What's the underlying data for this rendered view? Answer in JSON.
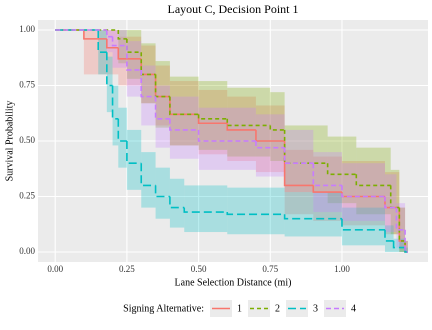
{
  "chart_data": {
    "type": "step",
    "title": "Layout C, Decision Point 1",
    "x_label": "Lane Selection Distance (mi)",
    "y_label": "Survival Probability",
    "legend_title": "Signing Alternative:",
    "legend_position": "bottom",
    "grid": true,
    "xlim": [
      -0.06,
      1.3
    ],
    "ylim": [
      -0.045,
      1.045
    ],
    "xticks": [
      {
        "value": 0,
        "label": "0.00"
      },
      0.25,
      {
        "value": 0.5,
        "label": "0.50"
      },
      0.75,
      {
        "value": 1,
        "label": "1.00"
      }
    ],
    "yticks": [
      {
        "value": 0,
        "label": "0.00"
      },
      0.25,
      {
        "value": 0.5,
        "label": "0.50"
      },
      0.75,
      {
        "value": 1,
        "label": "1.00"
      }
    ],
    "series": [
      {
        "name": "1",
        "color": "#F8766D",
        "dash": "none",
        "x": [
          0,
          0.1,
          0.18,
          0.22,
          0.3,
          0.35,
          0.4,
          0.5,
          0.6,
          0.7,
          0.8,
          0.9,
          1.0,
          1.15,
          1.2,
          1.22
        ],
        "values": [
          1,
          0.96,
          0.92,
          0.87,
          0.8,
          0.7,
          0.62,
          0.58,
          0.55,
          0.5,
          0.3,
          0.27,
          0.25,
          0.2,
          0.05,
          0
        ],
        "lower": [
          1,
          0.8,
          0.8,
          0.75,
          0.67,
          0.57,
          0.48,
          0.44,
          0.41,
          0.36,
          0.17,
          0.14,
          0.12,
          0.08,
          0,
          0
        ],
        "upper": [
          1,
          1,
          1,
          0.97,
          0.93,
          0.84,
          0.77,
          0.73,
          0.7,
          0.66,
          0.46,
          0.43,
          0.41,
          0.36,
          0.2,
          0.05
        ]
      },
      {
        "name": "2",
        "color": "#7CAE00",
        "dash": "4 3",
        "x": [
          0,
          0.22,
          0.25,
          0.3,
          0.35,
          0.4,
          0.5,
          0.6,
          0.75,
          0.8,
          0.95,
          1.05,
          1.17,
          1.2,
          1.22
        ],
        "values": [
          1,
          0.96,
          0.9,
          0.8,
          0.7,
          0.62,
          0.6,
          0.57,
          0.55,
          0.4,
          0.35,
          0.3,
          0.2,
          0.05,
          0
        ],
        "lower": [
          1,
          0.85,
          0.78,
          0.67,
          0.56,
          0.48,
          0.46,
          0.43,
          0.41,
          0.27,
          0.22,
          0.17,
          0.08,
          0,
          0
        ],
        "upper": [
          1,
          1,
          1,
          0.94,
          0.86,
          0.79,
          0.77,
          0.74,
          0.72,
          0.57,
          0.52,
          0.47,
          0.37,
          0.2,
          0.05
        ]
      },
      {
        "name": "3",
        "color": "#00BFC4",
        "dash": "8 4",
        "x": [
          0,
          0.15,
          0.18,
          0.2,
          0.22,
          0.25,
          0.3,
          0.35,
          0.4,
          0.45,
          0.6,
          0.8,
          1.0,
          1.15,
          1.18,
          1.22
        ],
        "values": [
          1,
          0.9,
          0.75,
          0.6,
          0.5,
          0.4,
          0.3,
          0.25,
          0.2,
          0.18,
          0.17,
          0.15,
          0.1,
          0.05,
          0.02,
          0
        ],
        "lower": [
          1,
          0.8,
          0.63,
          0.48,
          0.38,
          0.28,
          0.2,
          0.15,
          0.11,
          0.09,
          0.08,
          0.07,
          0.03,
          0,
          0,
          0
        ],
        "upper": [
          1,
          1,
          0.88,
          0.75,
          0.65,
          0.55,
          0.45,
          0.38,
          0.33,
          0.3,
          0.29,
          0.27,
          0.2,
          0.12,
          0.06,
          0.02
        ]
      },
      {
        "name": "4",
        "color": "#C77CFF",
        "dash": "5 3",
        "x": [
          0,
          0.18,
          0.2,
          0.25,
          0.3,
          0.35,
          0.4,
          0.5,
          0.7,
          0.8,
          0.9,
          1.0,
          1.15,
          1.19,
          1.22
        ],
        "values": [
          1,
          0.97,
          0.93,
          0.82,
          0.7,
          0.6,
          0.55,
          0.5,
          0.47,
          0.4,
          0.3,
          0.25,
          0.2,
          0.1,
          0
        ],
        "lower": [
          1,
          0.9,
          0.83,
          0.7,
          0.57,
          0.47,
          0.42,
          0.37,
          0.34,
          0.27,
          0.18,
          0.14,
          0.09,
          0.02,
          0
        ],
        "upper": [
          1,
          1,
          1,
          0.95,
          0.84,
          0.75,
          0.7,
          0.65,
          0.62,
          0.55,
          0.45,
          0.4,
          0.35,
          0.22,
          0.05
        ]
      }
    ]
  }
}
